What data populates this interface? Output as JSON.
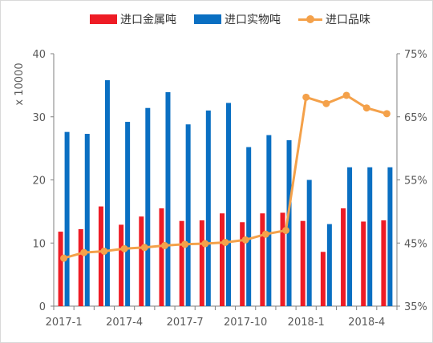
{
  "chart_data": {
    "type": "bar+line",
    "title": "",
    "y_left_unit": "x 10000",
    "y_left_lim": [
      0,
      40
    ],
    "y_left_ticks": [
      "0",
      "10",
      "20",
      "30",
      "40"
    ],
    "y_right_lim": [
      35,
      75
    ],
    "y_right_ticks": [
      "35%",
      "45%",
      "55%",
      "65%",
      "75%"
    ],
    "x_tick_labels": [
      "2017-1",
      "2017-4",
      "2017-7",
      "2017-10",
      "2018-1",
      "2018-4"
    ],
    "categories": [
      "2017-1",
      "2017-2",
      "2017-3",
      "2017-4",
      "2017-5",
      "2017-6",
      "2017-7",
      "2017-8",
      "2017-9",
      "2017-10",
      "2017-11",
      "2017-12",
      "2018-1",
      "2018-2",
      "2018-3",
      "2018-4",
      "2018-5"
    ],
    "legend_position": "top",
    "grid": false,
    "series": [
      {
        "name": "进口金属吨",
        "type": "bar",
        "axis": "left",
        "color": "#ee1c25",
        "values": [
          11.8,
          12.2,
          15.8,
          12.9,
          14.2,
          15.5,
          13.5,
          13.6,
          14.7,
          13.3,
          14.7,
          14.8,
          13.5,
          8.6,
          15.5,
          13.4,
          13.6
        ]
      },
      {
        "name": "进口实物吨",
        "type": "bar",
        "axis": "left",
        "color": "#0a6fc2",
        "values": [
          27.6,
          27.3,
          35.8,
          29.2,
          31.4,
          33.9,
          28.8,
          31.0,
          32.2,
          25.2,
          27.1,
          26.3,
          20.0,
          13.0,
          22.0,
          22.0,
          22.0
        ]
      },
      {
        "name": "进口品味",
        "type": "line",
        "axis": "right",
        "color": "#f4a14a",
        "values": [
          42.6,
          43.5,
          43.7,
          44.1,
          44.3,
          44.6,
          44.8,
          44.9,
          45.1,
          45.5,
          46.4,
          47.0,
          68.1,
          67.1,
          68.4,
          66.4,
          65.5
        ]
      }
    ]
  }
}
